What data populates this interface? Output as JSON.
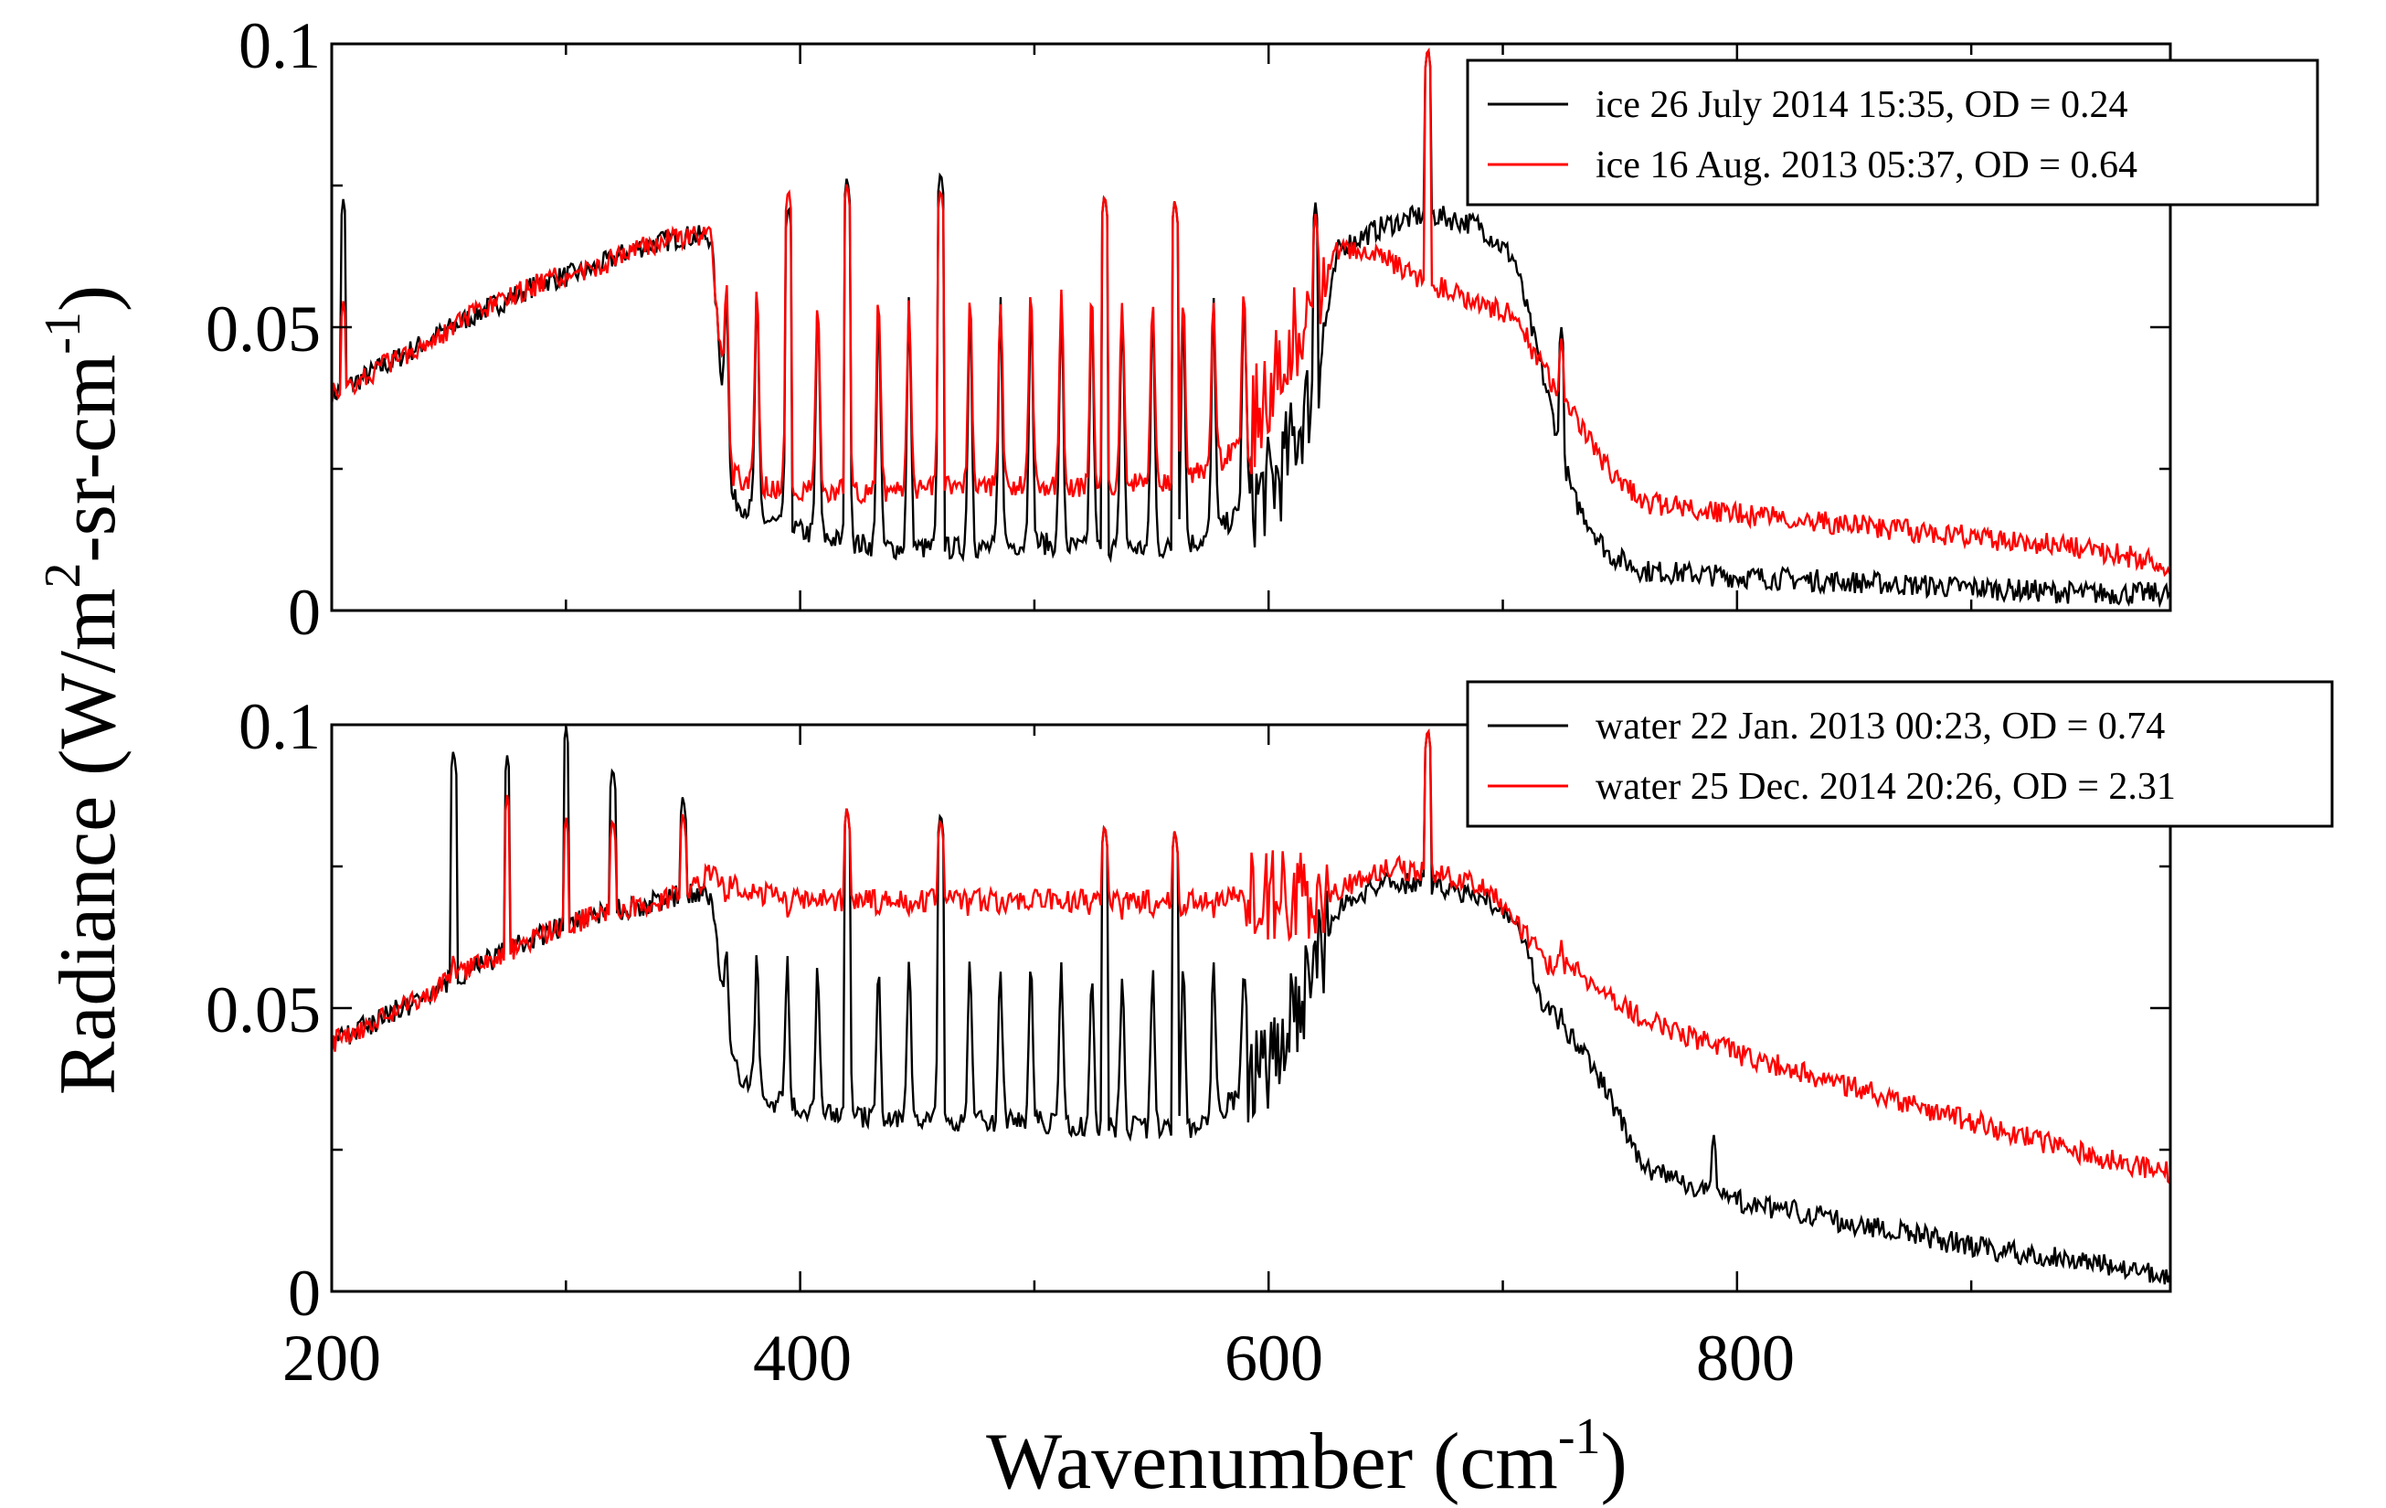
{
  "chart_data": [
    {
      "type": "line",
      "panel": "top",
      "xlim": [
        200,
        985
      ],
      "ylim": [
        0,
        0.1
      ],
      "x_ticks": [
        200,
        400,
        600,
        800
      ],
      "y_tick_labels": [
        "0",
        "0.05",
        "0.1"
      ],
      "y_ticks": [
        0,
        0.05,
        0.1
      ],
      "legend_position": "top-right",
      "series": [
        {
          "name": "ice 26 July 2014  15:35, OD = 0.24",
          "color": "#000000",
          "points": [
            [
              200,
              0.038
            ],
            [
              230,
              0.045
            ],
            [
              260,
              0.052
            ],
            [
              290,
              0.058
            ],
            [
              310,
              0.06
            ],
            [
              330,
              0.064
            ],
            [
              350,
              0.066
            ],
            [
              362,
              0.066
            ],
            [
              370,
              0.02
            ],
            [
              385,
              0.016
            ],
            [
              400,
              0.014
            ],
            [
              420,
              0.012
            ],
            [
              440,
              0.011
            ],
            [
              460,
              0.011
            ],
            [
              480,
              0.011
            ],
            [
              500,
              0.012
            ],
            [
              520,
              0.011
            ],
            [
              540,
              0.011
            ],
            [
              560,
              0.011
            ],
            [
              575,
              0.013
            ],
            [
              590,
              0.018
            ],
            [
              605,
              0.024
            ],
            [
              620,
              0.04
            ],
            [
              630,
              0.064
            ],
            [
              650,
              0.068
            ],
            [
              668,
              0.07
            ],
            [
              690,
              0.068
            ],
            [
              705,
              0.062
            ],
            [
              718,
              0.04
            ],
            [
              730,
              0.02
            ],
            [
              745,
              0.01
            ],
            [
              760,
              0.007
            ],
            [
              800,
              0.006
            ],
            [
              850,
              0.005
            ],
            [
              900,
              0.004
            ],
            [
              950,
              0.003
            ],
            [
              985,
              0.003
            ]
          ],
          "spikes": [
            [
              205,
              0.073
            ],
            [
              318,
              0.058
            ],
            [
              395,
              0.072
            ],
            [
              420,
              0.077
            ],
            [
              460,
              0.078
            ],
            [
              530,
              0.074
            ],
            [
              560,
              0.073
            ],
            [
              620,
              0.072
            ],
            [
              668,
              0.1
            ],
            [
              725,
              0.05
            ]
          ]
        },
        {
          "name": "ice 16 Aug. 2013  05:37, OD = 0.64",
          "color": "#ff0000",
          "points": [
            [
              200,
              0.038
            ],
            [
              230,
              0.045
            ],
            [
              260,
              0.052
            ],
            [
              290,
              0.058
            ],
            [
              310,
              0.06
            ],
            [
              330,
              0.064
            ],
            [
              350,
              0.066
            ],
            [
              362,
              0.066
            ],
            [
              370,
              0.024
            ],
            [
              385,
              0.022
            ],
            [
              400,
              0.021
            ],
            [
              420,
              0.021
            ],
            [
              440,
              0.021
            ],
            [
              460,
              0.022
            ],
            [
              480,
              0.022
            ],
            [
              500,
              0.022
            ],
            [
              520,
              0.022
            ],
            [
              540,
              0.022
            ],
            [
              560,
              0.023
            ],
            [
              575,
              0.025
            ],
            [
              590,
              0.03
            ],
            [
              605,
              0.045
            ],
            [
              620,
              0.055
            ],
            [
              630,
              0.064
            ],
            [
              650,
              0.062
            ],
            [
              668,
              0.058
            ],
            [
              690,
              0.054
            ],
            [
              705,
              0.052
            ],
            [
              718,
              0.042
            ],
            [
              730,
              0.035
            ],
            [
              745,
              0.025
            ],
            [
              760,
              0.019
            ],
            [
              800,
              0.017
            ],
            [
              850,
              0.015
            ],
            [
              900,
              0.013
            ],
            [
              950,
              0.011
            ],
            [
              985,
              0.008
            ]
          ],
          "spikes": [
            [
              205,
              0.055
            ],
            [
              318,
              0.058
            ],
            [
              395,
              0.075
            ],
            [
              420,
              0.076
            ],
            [
              460,
              0.075
            ],
            [
              530,
              0.074
            ],
            [
              560,
              0.073
            ],
            [
              620,
              0.07
            ],
            [
              668,
              0.1
            ],
            [
              725,
              0.048
            ]
          ]
        }
      ]
    },
    {
      "type": "line",
      "panel": "bottom",
      "xlim": [
        200,
        985
      ],
      "ylim": [
        0,
        0.1
      ],
      "x_ticks": [
        200,
        400,
        600,
        800
      ],
      "y_tick_labels": [
        "0",
        "0.05",
        "0.1"
      ],
      "y_ticks": [
        0,
        0.05,
        0.1
      ],
      "legend_position": "top-right",
      "series": [
        {
          "name": "water 22 Jan. 2013  00:23, OD = 0.74",
          "color": "#000000",
          "points": [
            [
              200,
              0.044
            ],
            [
              230,
              0.05
            ],
            [
              260,
              0.057
            ],
            [
              290,
              0.063
            ],
            [
              310,
              0.066
            ],
            [
              330,
              0.068
            ],
            [
              350,
              0.07
            ],
            [
              362,
              0.07
            ],
            [
              370,
              0.04
            ],
            [
              385,
              0.034
            ],
            [
              400,
              0.032
            ],
            [
              420,
              0.031
            ],
            [
              440,
              0.03
            ],
            [
              460,
              0.03
            ],
            [
              480,
              0.03
            ],
            [
              500,
              0.03
            ],
            [
              520,
              0.029
            ],
            [
              540,
              0.029
            ],
            [
              560,
              0.028
            ],
            [
              575,
              0.03
            ],
            [
              590,
              0.036
            ],
            [
              605,
              0.044
            ],
            [
              620,
              0.058
            ],
            [
              630,
              0.068
            ],
            [
              650,
              0.072
            ],
            [
              668,
              0.072
            ],
            [
              690,
              0.07
            ],
            [
              705,
              0.066
            ],
            [
              718,
              0.05
            ],
            [
              730,
              0.045
            ],
            [
              745,
              0.035
            ],
            [
              760,
              0.022
            ],
            [
              800,
              0.016
            ],
            [
              850,
              0.012
            ],
            [
              900,
              0.008
            ],
            [
              950,
              0.005
            ],
            [
              985,
              0.003
            ]
          ],
          "spikes": [
            [
              252,
              0.096
            ],
            [
              275,
              0.095
            ],
            [
              300,
              0.1
            ],
            [
              320,
              0.093
            ],
            [
              350,
              0.088
            ],
            [
              420,
              0.086
            ],
            [
              460,
              0.085
            ],
            [
              530,
              0.083
            ],
            [
              560,
              0.082
            ],
            [
              668,
              0.1
            ],
            [
              725,
              0.05
            ],
            [
              790,
              0.028
            ]
          ]
        },
        {
          "name": "water 25 Dec. 2014  20:26, OD = 2.31",
          "color": "#ff0000",
          "points": [
            [
              200,
              0.044
            ],
            [
              230,
              0.05
            ],
            [
              260,
              0.057
            ],
            [
              290,
              0.063
            ],
            [
              310,
              0.066
            ],
            [
              330,
              0.068
            ],
            [
              350,
              0.07
            ],
            [
              362,
              0.074
            ],
            [
              370,
              0.072
            ],
            [
              385,
              0.07
            ],
            [
              400,
              0.069
            ],
            [
              420,
              0.069
            ],
            [
              440,
              0.069
            ],
            [
              460,
              0.069
            ],
            [
              480,
              0.069
            ],
            [
              500,
              0.069
            ],
            [
              520,
              0.069
            ],
            [
              540,
              0.069
            ],
            [
              560,
              0.069
            ],
            [
              575,
              0.069
            ],
            [
              590,
              0.07
            ],
            [
              605,
              0.07
            ],
            [
              620,
              0.07
            ],
            [
              630,
              0.071
            ],
            [
              650,
              0.075
            ],
            [
              668,
              0.074
            ],
            [
              690,
              0.072
            ],
            [
              705,
              0.066
            ],
            [
              718,
              0.058
            ],
            [
              730,
              0.057
            ],
            [
              745,
              0.052
            ],
            [
              760,
              0.048
            ],
            [
              800,
              0.042
            ],
            [
              850,
              0.036
            ],
            [
              900,
              0.03
            ],
            [
              950,
              0.024
            ],
            [
              985,
              0.021
            ]
          ],
          "spikes": [
            [
              252,
              0.06
            ],
            [
              275,
              0.088
            ],
            [
              300,
              0.084
            ],
            [
              320,
              0.084
            ],
            [
              350,
              0.085
            ],
            [
              420,
              0.086
            ],
            [
              460,
              0.084
            ],
            [
              530,
              0.083
            ],
            [
              560,
              0.082
            ],
            [
              668,
              0.1
            ],
            [
              725,
              0.062
            ]
          ]
        }
      ]
    }
  ],
  "axes": {
    "x_tick_labels": [
      "200",
      "400",
      "600",
      "800"
    ],
    "x_label_main": "Wavenumber (cm",
    "x_label_sup": "-1",
    "x_label_close": ")",
    "y_label_part1": "Radiance (W/m",
    "y_label_sup1": "2",
    "y_label_part2": "-sr-cm",
    "y_label_sup2": "-1",
    "y_label_close": ")"
  }
}
